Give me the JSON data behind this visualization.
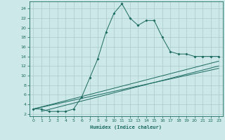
{
  "xlabel": "Humidex (Indice chaleur)",
  "bg_color": "#cce8e8",
  "grid_color": "#b0d8d8",
  "line_color": "#1a6a60",
  "xlim": [
    -0.5,
    23.5
  ],
  "ylim": [
    1.5,
    25.5
  ],
  "yticks": [
    2,
    4,
    6,
    8,
    10,
    12,
    14,
    16,
    18,
    20,
    22,
    24
  ],
  "xticks": [
    0,
    1,
    2,
    3,
    4,
    5,
    6,
    7,
    8,
    9,
    10,
    11,
    12,
    13,
    14,
    15,
    16,
    17,
    18,
    19,
    20,
    21,
    22,
    23
  ],
  "curve1_x": [
    0,
    1,
    2,
    3,
    4,
    5,
    6,
    7,
    8,
    9,
    10,
    11,
    12,
    13,
    14,
    15,
    16,
    17,
    18,
    19,
    20,
    21,
    22,
    23
  ],
  "curve1_y": [
    3.0,
    3.0,
    2.5,
    2.5,
    2.5,
    3.0,
    5.5,
    9.5,
    13.5,
    19.0,
    23.0,
    25.0,
    22.0,
    20.5,
    21.5,
    21.5,
    18.0,
    15.0,
    14.5,
    14.5,
    14.0,
    14.0,
    14.0,
    14.0
  ],
  "line2_x": [
    0,
    23
  ],
  "line2_y": [
    3.0,
    13.0
  ],
  "line3_x": [
    0,
    23
  ],
  "line3_y": [
    3.0,
    11.5
  ],
  "line4_x": [
    1,
    23
  ],
  "line4_y": [
    2.5,
    12.0
  ]
}
